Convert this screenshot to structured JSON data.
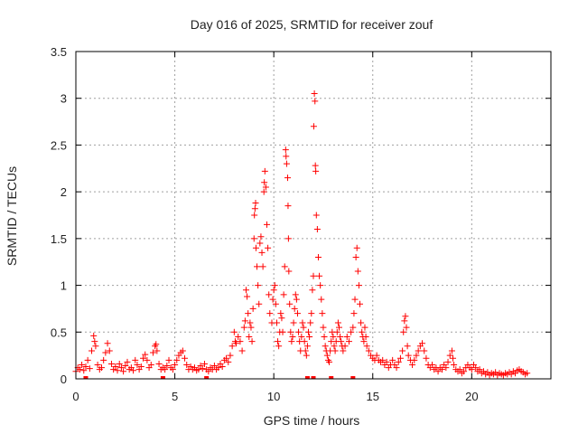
{
  "chart_data": {
    "type": "scatter",
    "title": "Day 016 of 2025, SRMTID for receiver zouf",
    "xlabel": "GPS time / hours",
    "ylabel": "SRMTID / TECUs",
    "xlim": [
      0,
      24
    ],
    "ylim": [
      0,
      3.5
    ],
    "xticks": [
      0,
      5,
      10,
      15,
      20
    ],
    "xtick_labels": [
      "0",
      "5",
      "10",
      "15",
      "20"
    ],
    "yticks": [
      0,
      0.5,
      1,
      1.5,
      2,
      2.5,
      3,
      3.5
    ],
    "ytick_labels": [
      "0",
      "0.5",
      "1",
      "1.5",
      "2",
      "2.5",
      "3",
      "3.5"
    ],
    "grid": true,
    "marker": "plus",
    "series": [
      {
        "name": "SRMTID",
        "color": "#ff0000",
        "points": [
          [
            0.0,
            0.08
          ],
          [
            0.1,
            0.12
          ],
          [
            0.2,
            0.1
          ],
          [
            0.3,
            0.15
          ],
          [
            0.4,
            0.09
          ],
          [
            0.5,
            0.13
          ],
          [
            0.6,
            0.2
          ],
          [
            0.7,
            0.11
          ],
          [
            0.8,
            0.3
          ],
          [
            0.9,
            0.46
          ],
          [
            0.95,
            0.4
          ],
          [
            1.0,
            0.35
          ],
          [
            1.1,
            0.15
          ],
          [
            1.2,
            0.1
          ],
          [
            1.3,
            0.12
          ],
          [
            1.4,
            0.2
          ],
          [
            1.5,
            0.28
          ],
          [
            1.6,
            0.38
          ],
          [
            1.7,
            0.3
          ],
          [
            1.8,
            0.16
          ],
          [
            1.9,
            0.1
          ],
          [
            2.0,
            0.13
          ],
          [
            2.1,
            0.09
          ],
          [
            2.2,
            0.16
          ],
          [
            2.3,
            0.12
          ],
          [
            2.4,
            0.08
          ],
          [
            2.5,
            0.14
          ],
          [
            2.6,
            0.18
          ],
          [
            2.7,
            0.1
          ],
          [
            2.8,
            0.12
          ],
          [
            2.9,
            0.09
          ],
          [
            3.0,
            0.2
          ],
          [
            3.1,
            0.15
          ],
          [
            3.2,
            0.1
          ],
          [
            3.3,
            0.13
          ],
          [
            3.4,
            0.22
          ],
          [
            3.5,
            0.26
          ],
          [
            3.6,
            0.2
          ],
          [
            3.7,
            0.12
          ],
          [
            3.8,
            0.15
          ],
          [
            3.9,
            0.28
          ],
          [
            4.0,
            0.35
          ],
          [
            4.05,
            0.37
          ],
          [
            4.1,
            0.3
          ],
          [
            4.2,
            0.16
          ],
          [
            4.3,
            0.1
          ],
          [
            4.4,
            0.12
          ],
          [
            4.5,
            0.1
          ],
          [
            4.6,
            0.14
          ],
          [
            4.7,
            0.2
          ],
          [
            4.8,
            0.12
          ],
          [
            4.9,
            0.1
          ],
          [
            5.0,
            0.15
          ],
          [
            5.1,
            0.2
          ],
          [
            5.2,
            0.25
          ],
          [
            5.3,
            0.28
          ],
          [
            5.4,
            0.3
          ],
          [
            5.5,
            0.22
          ],
          [
            5.6,
            0.15
          ],
          [
            5.7,
            0.1
          ],
          [
            5.8,
            0.13
          ],
          [
            5.9,
            0.1
          ],
          [
            6.0,
            0.12
          ],
          [
            6.1,
            0.09
          ],
          [
            6.2,
            0.1
          ],
          [
            6.3,
            0.14
          ],
          [
            6.4,
            0.11
          ],
          [
            6.5,
            0.16
          ],
          [
            6.6,
            0.1
          ],
          [
            6.7,
            0.08
          ],
          [
            6.8,
            0.12
          ],
          [
            6.9,
            0.1
          ],
          [
            7.0,
            0.14
          ],
          [
            7.1,
            0.1
          ],
          [
            7.2,
            0.12
          ],
          [
            7.3,
            0.16
          ],
          [
            7.4,
            0.13
          ],
          [
            7.5,
            0.2
          ],
          [
            7.6,
            0.22
          ],
          [
            7.7,
            0.18
          ],
          [
            7.8,
            0.25
          ],
          [
            7.9,
            0.35
          ],
          [
            8.0,
            0.5
          ],
          [
            8.05,
            0.4
          ],
          [
            8.1,
            0.38
          ],
          [
            8.2,
            0.45
          ],
          [
            8.3,
            0.4
          ],
          [
            8.4,
            0.3
          ],
          [
            8.5,
            0.55
          ],
          [
            8.55,
            0.62
          ],
          [
            8.6,
            0.95
          ],
          [
            8.65,
            0.88
          ],
          [
            8.7,
            0.7
          ],
          [
            8.75,
            0.45
          ],
          [
            8.8,
            0.6
          ],
          [
            8.85,
            0.55
          ],
          [
            8.9,
            0.4
          ],
          [
            8.95,
            0.75
          ],
          [
            9.0,
            1.5
          ],
          [
            9.02,
            1.75
          ],
          [
            9.05,
            1.82
          ],
          [
            9.08,
            1.88
          ],
          [
            9.1,
            1.4
          ],
          [
            9.15,
            1.2
          ],
          [
            9.2,
            1.0
          ],
          [
            9.25,
            0.8
          ],
          [
            9.3,
            1.45
          ],
          [
            9.35,
            1.52
          ],
          [
            9.4,
            1.35
          ],
          [
            9.45,
            1.2
          ],
          [
            9.5,
            2.0
          ],
          [
            9.52,
            2.1
          ],
          [
            9.55,
            2.22
          ],
          [
            9.6,
            2.05
          ],
          [
            9.65,
            1.65
          ],
          [
            9.7,
            1.4
          ],
          [
            9.75,
            0.9
          ],
          [
            9.8,
            0.7
          ],
          [
            9.9,
            0.6
          ],
          [
            9.95,
            0.85
          ],
          [
            10.0,
            0.95
          ],
          [
            10.05,
            1.0
          ],
          [
            10.1,
            0.8
          ],
          [
            10.15,
            0.6
          ],
          [
            10.2,
            0.4
          ],
          [
            10.25,
            0.35
          ],
          [
            10.3,
            0.5
          ],
          [
            10.35,
            0.7
          ],
          [
            10.4,
            0.65
          ],
          [
            10.45,
            0.5
          ],
          [
            10.5,
            0.9
          ],
          [
            10.55,
            1.2
          ],
          [
            10.6,
            2.45
          ],
          [
            10.62,
            2.38
          ],
          [
            10.65,
            2.3
          ],
          [
            10.7,
            2.15
          ],
          [
            10.72,
            1.85
          ],
          [
            10.74,
            1.5
          ],
          [
            10.76,
            1.15
          ],
          [
            10.8,
            0.8
          ],
          [
            10.85,
            0.5
          ],
          [
            10.9,
            0.4
          ],
          [
            10.95,
            0.45
          ],
          [
            11.0,
            0.6
          ],
          [
            11.05,
            0.75
          ],
          [
            11.1,
            0.9
          ],
          [
            11.15,
            0.85
          ],
          [
            11.2,
            0.7
          ],
          [
            11.25,
            0.5
          ],
          [
            11.3,
            0.4
          ],
          [
            11.35,
            0.3
          ],
          [
            11.4,
            0.45
          ],
          [
            11.45,
            0.6
          ],
          [
            11.5,
            0.55
          ],
          [
            11.55,
            0.4
          ],
          [
            11.6,
            0.3
          ],
          [
            11.65,
            0.25
          ],
          [
            11.7,
            0.35
          ],
          [
            11.75,
            0.5
          ],
          [
            11.8,
            0.45
          ],
          [
            11.85,
            0.6
          ],
          [
            11.9,
            0.7
          ],
          [
            11.95,
            0.95
          ],
          [
            12.0,
            1.1
          ],
          [
            12.02,
            2.7
          ],
          [
            12.05,
            3.05
          ],
          [
            12.08,
            2.97
          ],
          [
            12.1,
            2.28
          ],
          [
            12.12,
            2.22
          ],
          [
            12.15,
            1.75
          ],
          [
            12.2,
            1.6
          ],
          [
            12.25,
            1.3
          ],
          [
            12.3,
            1.1
          ],
          [
            12.35,
            1.0
          ],
          [
            12.4,
            0.85
          ],
          [
            12.45,
            0.7
          ],
          [
            12.5,
            0.55
          ],
          [
            12.55,
            0.45
          ],
          [
            12.6,
            0.35
          ],
          [
            12.65,
            0.3
          ],
          [
            12.7,
            0.25
          ],
          [
            12.75,
            0.2
          ],
          [
            12.8,
            0.18
          ],
          [
            12.85,
            0.3
          ],
          [
            12.9,
            0.4
          ],
          [
            12.95,
            0.5
          ],
          [
            13.0,
            0.45
          ],
          [
            13.05,
            0.35
          ],
          [
            13.1,
            0.3
          ],
          [
            13.15,
            0.4
          ],
          [
            13.2,
            0.5
          ],
          [
            13.25,
            0.6
          ],
          [
            13.3,
            0.55
          ],
          [
            13.35,
            0.45
          ],
          [
            13.4,
            0.4
          ],
          [
            13.45,
            0.35
          ],
          [
            13.5,
            0.3
          ],
          [
            13.6,
            0.35
          ],
          [
            13.7,
            0.45
          ],
          [
            13.8,
            0.4
          ],
          [
            13.9,
            0.5
          ],
          [
            14.0,
            0.55
          ],
          [
            14.05,
            0.7
          ],
          [
            14.1,
            0.85
          ],
          [
            14.15,
            1.3
          ],
          [
            14.2,
            1.4
          ],
          [
            14.25,
            1.15
          ],
          [
            14.3,
            1.0
          ],
          [
            14.35,
            0.8
          ],
          [
            14.4,
            0.6
          ],
          [
            14.45,
            0.5
          ],
          [
            14.5,
            0.45
          ],
          [
            14.55,
            0.4
          ],
          [
            14.6,
            0.55
          ],
          [
            14.65,
            0.45
          ],
          [
            14.7,
            0.35
          ],
          [
            14.8,
            0.3
          ],
          [
            14.9,
            0.25
          ],
          [
            15.0,
            0.22
          ],
          [
            15.1,
            0.2
          ],
          [
            15.2,
            0.25
          ],
          [
            15.3,
            0.2
          ],
          [
            15.4,
            0.18
          ],
          [
            15.5,
            0.2
          ],
          [
            15.6,
            0.15
          ],
          [
            15.7,
            0.18
          ],
          [
            15.8,
            0.12
          ],
          [
            15.9,
            0.15
          ],
          [
            16.0,
            0.2
          ],
          [
            16.1,
            0.15
          ],
          [
            16.2,
            0.12
          ],
          [
            16.3,
            0.18
          ],
          [
            16.4,
            0.22
          ],
          [
            16.5,
            0.3
          ],
          [
            16.55,
            0.5
          ],
          [
            16.6,
            0.62
          ],
          [
            16.65,
            0.67
          ],
          [
            16.7,
            0.55
          ],
          [
            16.75,
            0.35
          ],
          [
            16.8,
            0.25
          ],
          [
            16.9,
            0.2
          ],
          [
            17.0,
            0.15
          ],
          [
            17.1,
            0.2
          ],
          [
            17.2,
            0.25
          ],
          [
            17.3,
            0.3
          ],
          [
            17.4,
            0.35
          ],
          [
            17.5,
            0.38
          ],
          [
            17.6,
            0.3
          ],
          [
            17.7,
            0.22
          ],
          [
            17.8,
            0.15
          ],
          [
            17.9,
            0.12
          ],
          [
            18.0,
            0.15
          ],
          [
            18.1,
            0.1
          ],
          [
            18.2,
            0.12
          ],
          [
            18.3,
            0.08
          ],
          [
            18.4,
            0.12
          ],
          [
            18.5,
            0.1
          ],
          [
            18.6,
            0.15
          ],
          [
            18.7,
            0.12
          ],
          [
            18.8,
            0.18
          ],
          [
            18.9,
            0.25
          ],
          [
            19.0,
            0.3
          ],
          [
            19.05,
            0.22
          ],
          [
            19.1,
            0.15
          ],
          [
            19.2,
            0.1
          ],
          [
            19.3,
            0.08
          ],
          [
            19.4,
            0.1
          ],
          [
            19.5,
            0.06
          ],
          [
            19.6,
            0.08
          ],
          [
            19.7,
            0.12
          ],
          [
            19.8,
            0.15
          ],
          [
            19.9,
            0.12
          ],
          [
            20.0,
            0.1
          ],
          [
            20.1,
            0.15
          ],
          [
            20.2,
            0.12
          ],
          [
            20.3,
            0.08
          ],
          [
            20.4,
            0.1
          ],
          [
            20.5,
            0.06
          ],
          [
            20.6,
            0.08
          ],
          [
            20.7,
            0.05
          ],
          [
            20.8,
            0.07
          ],
          [
            20.9,
            0.04
          ],
          [
            21.0,
            0.06
          ],
          [
            21.1,
            0.05
          ],
          [
            21.2,
            0.07
          ],
          [
            21.3,
            0.04
          ],
          [
            21.4,
            0.06
          ],
          [
            21.5,
            0.05
          ],
          [
            21.6,
            0.04
          ],
          [
            21.7,
            0.06
          ],
          [
            21.8,
            0.05
          ],
          [
            21.9,
            0.07
          ],
          [
            22.0,
            0.05
          ],
          [
            22.1,
            0.08
          ],
          [
            22.2,
            0.06
          ],
          [
            22.3,
            0.09
          ],
          [
            22.4,
            0.1
          ],
          [
            22.5,
            0.08
          ],
          [
            22.6,
            0.07
          ],
          [
            22.7,
            0.05
          ],
          [
            22.8,
            0.06
          ]
        ],
        "near_zero_markers": [
          0.5,
          4.4,
          6.6,
          11.7,
          12.0,
          12.9,
          14.0
        ]
      }
    ]
  }
}
